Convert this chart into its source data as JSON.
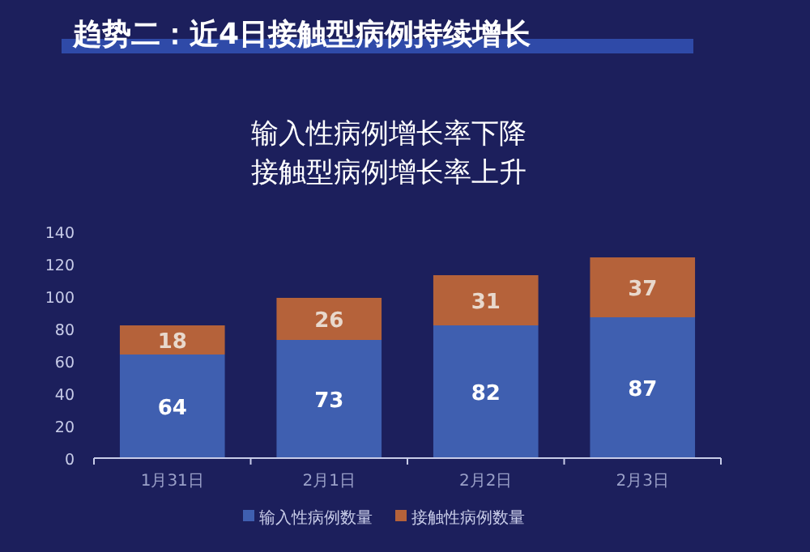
{
  "chart_data": {
    "type": "bar",
    "title": "趋势二：近4日接触型病例持续增长",
    "subtitle": "输入性病例增长率下降",
    "annotations": [
      "接触型病例增长率上升"
    ],
    "categories": [
      "1月31日",
      "2月1日",
      "2月2日",
      "2月3日"
    ],
    "series": [
      {
        "name": "输入性病例数量",
        "color": "#3f5fb0",
        "values": [
          64,
          73,
          82,
          87
        ]
      },
      {
        "name": "接触性病例数量",
        "color": "#b5623a",
        "values": [
          18,
          26,
          31,
          37
        ]
      }
    ],
    "stacked": true,
    "data_labels": true,
    "ylim": [
      0,
      140
    ],
    "yticks": [
      0,
      20,
      40,
      60,
      80,
      100,
      120,
      140
    ],
    "legend": "bottom"
  }
}
